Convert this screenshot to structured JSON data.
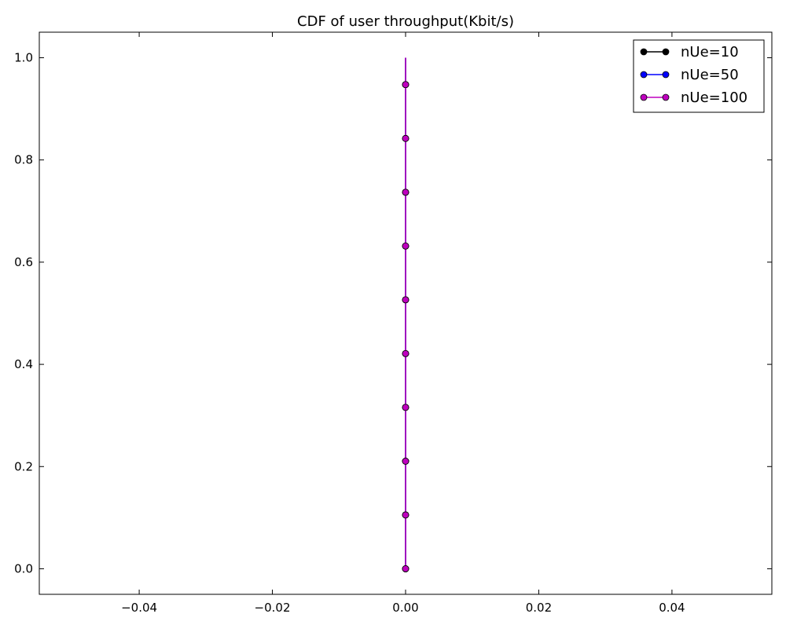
{
  "chart_data": {
    "type": "line",
    "title": "CDF of user throughput(Kbit/s)",
    "xlabel": "",
    "ylabel": "",
    "xlim": [
      -0.055,
      0.055
    ],
    "ylim": [
      -0.05,
      1.05
    ],
    "xticks": [
      -0.04,
      -0.02,
      0.0,
      0.02,
      0.04
    ],
    "xtick_labels": [
      "−0.04",
      "−0.02",
      "0.00",
      "0.02",
      "0.04"
    ],
    "yticks": [
      0.0,
      0.2,
      0.4,
      0.6,
      0.8,
      1.0
    ],
    "ytick_labels": [
      "0.0",
      "0.2",
      "0.4",
      "0.6",
      "0.8",
      "1.0"
    ],
    "grid": false,
    "legend_position": "top-right",
    "series": [
      {
        "name": "nUe=10",
        "color": "#000000",
        "marker": "circle",
        "x": [
          0,
          0,
          0,
          0,
          0,
          0,
          0,
          0,
          0,
          0,
          0
        ],
        "y": [
          0.0,
          0.1053,
          0.2105,
          0.3158,
          0.4211,
          0.5263,
          0.6316,
          0.7368,
          0.8421,
          0.9474,
          1.0
        ],
        "marker_count": 10
      },
      {
        "name": "nUe=50",
        "color": "#0000ff",
        "marker": "circle",
        "x": [
          0,
          0,
          0,
          0,
          0,
          0,
          0,
          0,
          0,
          0,
          0
        ],
        "y": [
          0.0,
          0.1053,
          0.2105,
          0.3158,
          0.4211,
          0.5263,
          0.6316,
          0.7368,
          0.8421,
          0.9474,
          1.0
        ],
        "marker_count": 10
      },
      {
        "name": "nUe=100",
        "color": "#bf00bf",
        "marker": "circle",
        "x": [
          0,
          0,
          0,
          0,
          0,
          0,
          0,
          0,
          0,
          0,
          0
        ],
        "y": [
          0.0,
          0.1053,
          0.2105,
          0.3158,
          0.4211,
          0.5263,
          0.6316,
          0.7368,
          0.8421,
          0.9474,
          1.0
        ],
        "marker_count": 10
      }
    ]
  }
}
